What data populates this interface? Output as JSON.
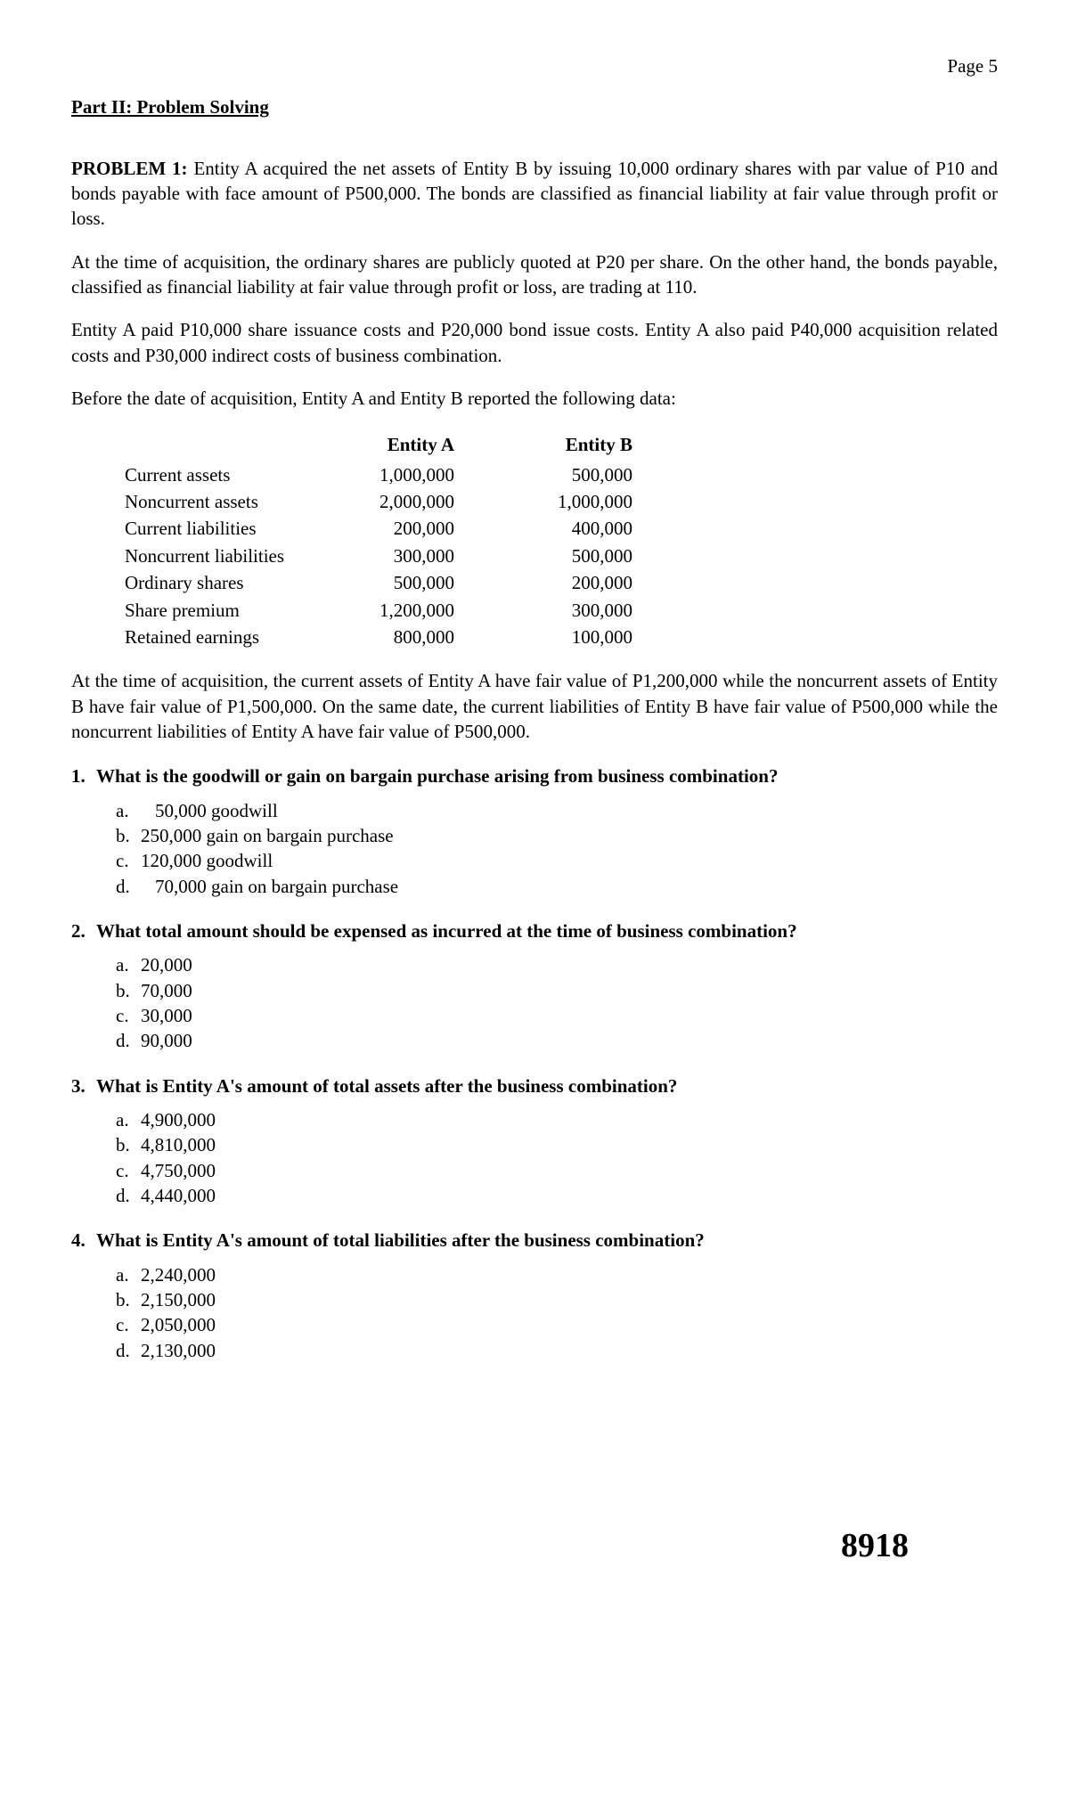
{
  "page_label": "Page   5",
  "section_title": "Part II: Problem Solving",
  "problem_label": "PROBLEM 1:",
  "para1": "Entity A acquired the net assets of Entity B by issuing 10,000 ordinary shares with par value of P10 and bonds payable with face amount of P500,000. The bonds are classified as financial liability at fair value through profit or loss.",
  "para2": "At the time of acquisition, the ordinary shares are publicly quoted at P20 per share. On the other hand, the bonds payable, classified as financial liability at fair value through profit or loss, are trading at 110.",
  "para3": "Entity A paid P10,000 share issuance costs and P20,000 bond issue costs.  Entity A also paid P40,000 acquisition related costs and P30,000 indirect costs of business combination.",
  "para4": "Before the date of acquisition, Entity A and Entity B reported the following data:",
  "table": {
    "headers": [
      "Entity A",
      "Entity B"
    ],
    "rows": [
      {
        "label": "Current assets",
        "a": "1,000,000",
        "b": "500,000"
      },
      {
        "label": "Noncurrent assets",
        "a": "2,000,000",
        "b": "1,000,000"
      },
      {
        "label": "Current liabilities",
        "a": "200,000",
        "b": "400,000"
      },
      {
        "label": "Noncurrent liabilities",
        "a": "300,000",
        "b": "500,000"
      },
      {
        "label": "Ordinary shares",
        "a": "500,000",
        "b": "200,000"
      },
      {
        "label": "Share premium",
        "a": "1,200,000",
        "b": "300,000"
      },
      {
        "label": "Retained earnings",
        "a": "800,000",
        "b": "100,000"
      }
    ]
  },
  "para5": "At the time of acquisition, the current assets of Entity A have fair value of P1,200,000 while the noncurrent assets of Entity B have fair value of P1,500,000. On the same date, the current liabilities of Entity B have fair value of P500,000 while the noncurrent liabilities of Entity A have fair value of P500,000.",
  "questions": [
    {
      "num": "1.",
      "text": "What is the goodwill or gain on bargain purchase arising from business combination?",
      "opts": [
        {
          "l": "a.",
          "t": "50,000 goodwill",
          "pad": true
        },
        {
          "l": "b.",
          "t": "250,000 gain on bargain purchase",
          "pad": false
        },
        {
          "l": "c.",
          "t": "120,000 goodwill",
          "pad": false
        },
        {
          "l": "d.",
          "t": "70,000 gain on bargain purchase",
          "pad": true
        }
      ]
    },
    {
      "num": "2.",
      "text": "What total amount should be expensed as incurred at the time of business combination?",
      "opts": [
        {
          "l": "a.",
          "t": "20,000",
          "pad": false
        },
        {
          "l": "b.",
          "t": "70,000",
          "pad": false
        },
        {
          "l": "c.",
          "t": "30,000",
          "pad": false
        },
        {
          "l": "d.",
          "t": "90,000",
          "pad": false
        }
      ]
    },
    {
      "num": "3.",
      "text": "What is Entity A's amount of total assets after the business combination?",
      "opts": [
        {
          "l": "a.",
          "t": "4,900,000",
          "pad": false
        },
        {
          "l": "b.",
          "t": "4,810,000",
          "pad": false
        },
        {
          "l": "c.",
          "t": "4,750,000",
          "pad": false
        },
        {
          "l": "d.",
          "t": "4,440,000",
          "pad": false
        }
      ]
    },
    {
      "num": "4.",
      "text": "What is Entity A's amount of total liabilities after the business combination?",
      "opts": [
        {
          "l": "a.",
          "t": "2,240,000",
          "pad": false
        },
        {
          "l": "b.",
          "t": "2,150,000",
          "pad": false
        },
        {
          "l": "c.",
          "t": "2,050,000",
          "pad": false
        },
        {
          "l": "d.",
          "t": "2,130,000",
          "pad": false
        }
      ]
    }
  ],
  "footer_number": "8918"
}
